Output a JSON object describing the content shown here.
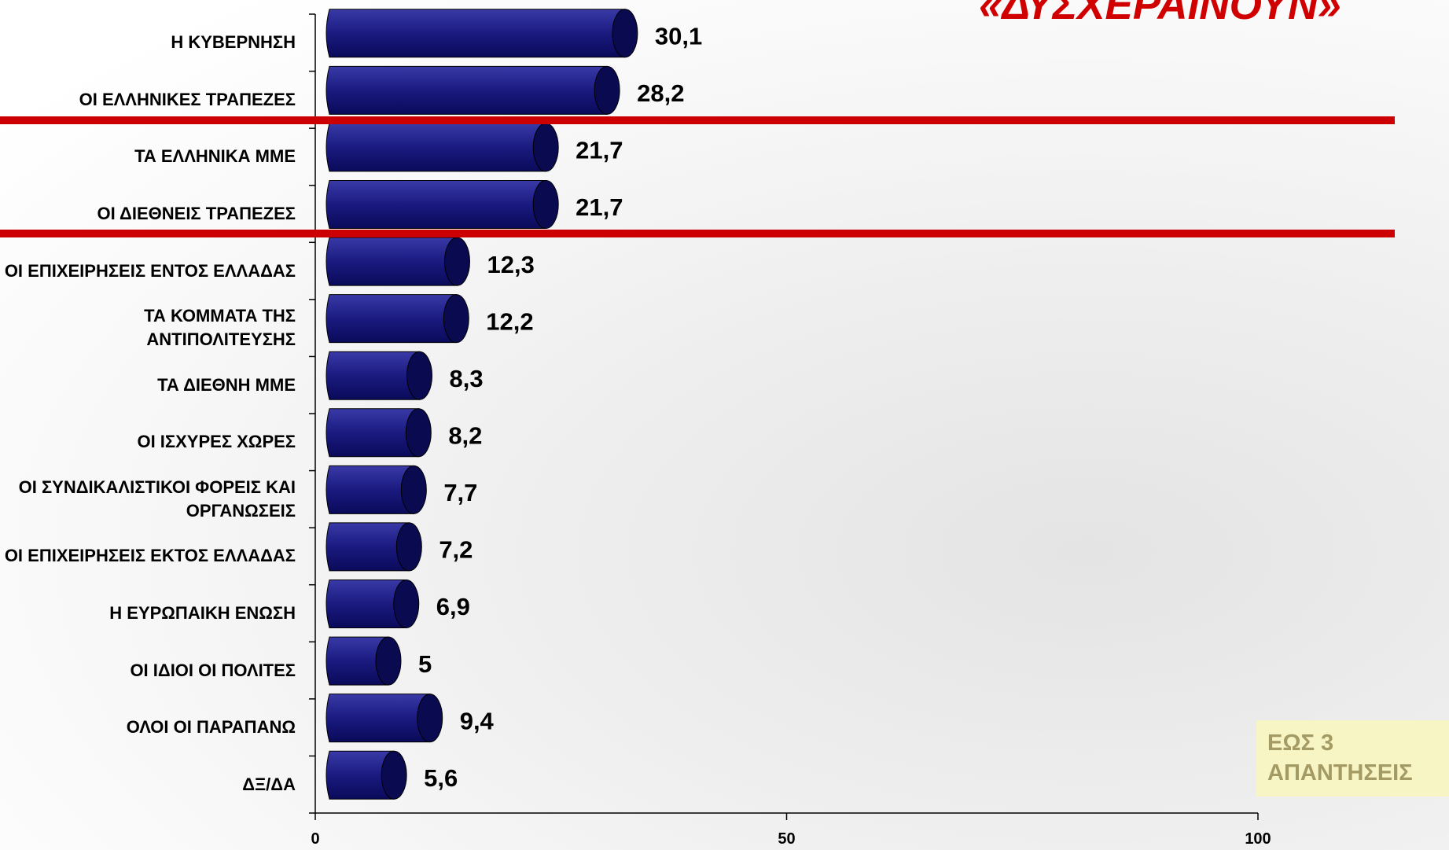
{
  "chart_data": {
    "type": "barh",
    "title": "«ΔΥΣΧΕΡΑΙΝΟΥΝ»",
    "annotation": "ΕΩΣ 3 ΑΠΑΝΤΗΣΕΙΣ",
    "categories": [
      "Η ΚΥΒΕΡΝΗΣΗ",
      "ΟΙ ΕΛΛΗΝΙΚΕΣ ΤΡΑΠΕΖΕΣ",
      "ΤΑ ΕΛΛΗΝΙΚΑ ΜΜΕ",
      "ΟΙ ΔΙΕΘΝΕΙΣ ΤΡΑΠΕΖΕΣ",
      "ΟΙ ΕΠΙΧΕΙΡΗΣΕΙΣ ΕΝΤΟΣ ΕΛΛΑΔΑΣ",
      "ΤΑ ΚΟΜΜΑΤΑ ΤΗΣ ΑΝΤΙΠΟΛΙΤΕΥΣΗΣ",
      "ΤΑ ΔΙΕΘΝΗ ΜΜΕ",
      "ΟΙ ΙΣΧΥΡΕΣ ΧΩΡΕΣ",
      "ΟΙ ΣΥΝΔΙΚΑΛΙΣΤΙΚΟΙ ΦΟΡΕΙΣ ΚΑΙ ΟΡΓΑΝΩΣΕΙΣ",
      "ΟΙ ΕΠΙΧΕΙΡΗΣΕΙΣ ΕΚΤΟΣ ΕΛΛΑΔΑΣ",
      "Η ΕΥΡΩΠΑΙΚΗ ΕΝΩΣΗ",
      "ΟΙ ΙΔΙΟΙ ΟΙ ΠΟΛΙΤΕΣ",
      "ΟΛΟΙ ΟΙ ΠΑΡΑΠΑΝΩ",
      "ΔΞ/ΔΑ"
    ],
    "values": [
      30.1,
      28.2,
      21.7,
      21.7,
      12.3,
      12.2,
      8.3,
      8.2,
      7.7,
      7.2,
      6.9,
      5,
      9.4,
      5.6
    ],
    "value_labels": [
      "30,1",
      "28,2",
      "21,7",
      "21,7",
      "12,3",
      "12,2",
      "8,3",
      "8,2",
      "7,7",
      "7,2",
      "6,9",
      "5",
      "9,4",
      "5,6"
    ],
    "color": "#1a1a80",
    "xlim": [
      0,
      100
    ],
    "xticks": [
      0,
      50,
      100
    ]
  }
}
